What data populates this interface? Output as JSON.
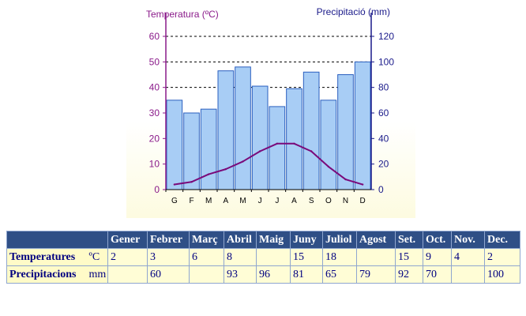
{
  "chart_data": {
    "type": "bar+line",
    "categories": [
      "G",
      "F",
      "M",
      "A",
      "M",
      "J",
      "J",
      "A",
      "S",
      "O",
      "N",
      "D"
    ],
    "left_axis_title": "Temperatura (ºC)",
    "right_axis_title": "Precipitació (mm)",
    "left_ylim": [
      0,
      60
    ],
    "right_ylim": [
      0,
      120
    ],
    "left_ticks": [
      "0",
      "10",
      "20",
      "30",
      "40",
      "50",
      "60"
    ],
    "right_ticks": [
      "0",
      "20",
      "40",
      "60",
      "80",
      "100",
      "120"
    ],
    "dashed_gridlines_left": [
      40,
      50,
      60
    ],
    "bar_series": {
      "axis": "right",
      "values": [
        70,
        60,
        63,
        93,
        96,
        81,
        65,
        79,
        92,
        70,
        90,
        100
      ]
    },
    "line_series": {
      "axis": "left",
      "values": [
        2,
        3,
        6,
        8,
        11,
        15,
        18,
        18,
        15,
        9,
        4,
        2
      ]
    },
    "colors": {
      "bar_fill": "#a8cdf5",
      "bar_stroke": "#2a5fbf",
      "line": "#7a0a7a",
      "left_axis": "#8a1a8a",
      "right_axis": "#1a1a8a"
    }
  },
  "table": {
    "headers": [
      "Gener",
      "Febrer",
      "Març",
      "Abril",
      "Maig",
      "Juny",
      "Juliol",
      "Agost",
      "Set.",
      "Oct.",
      "Nov.",
      "Dec."
    ],
    "rows": [
      {
        "label": "Temperatures",
        "unit": "ºC",
        "values": [
          "2",
          "3",
          "6",
          "8",
          "",
          "15",
          "18",
          "",
          "15",
          "9",
          "4",
          "2"
        ]
      },
      {
        "label": "Precipitacions",
        "unit": "mm",
        "values": [
          "",
          "60",
          "",
          "93",
          "96",
          "81",
          "65",
          "79",
          "92",
          "70",
          "",
          "100"
        ]
      }
    ]
  }
}
